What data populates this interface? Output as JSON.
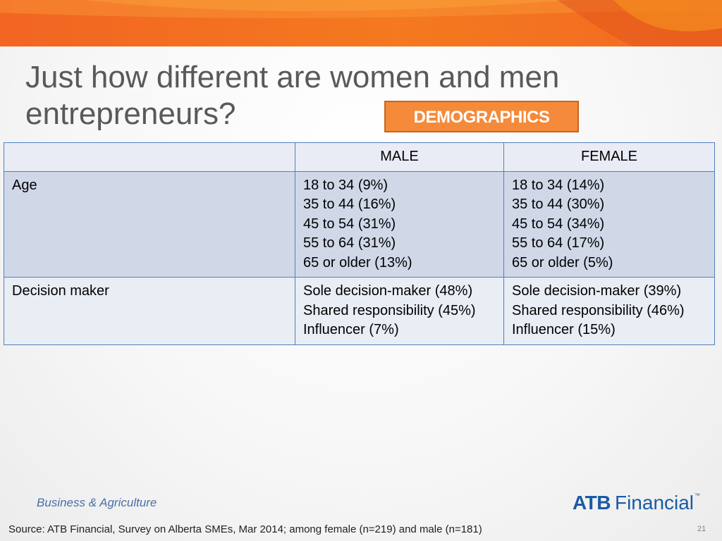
{
  "slide": {
    "title": "Just how different are women and men entrepreneurs?",
    "tag": "DEMOGRAPHICS"
  },
  "table": {
    "headers": [
      "",
      "MALE",
      "FEMALE"
    ],
    "rows": [
      {
        "label": "Age",
        "male": [
          "18 to 34 (9%)",
          "35 to 44 (16%)",
          "45 to 54 (31%)",
          "55 to 64 (31%)",
          "65 or older (13%)"
        ],
        "female": [
          "18 to 34 (14%)",
          "35 to 44 (30%)",
          "45 to 54 (34%)",
          "55 to 64 (17%)",
          "65 or older (5%)"
        ]
      },
      {
        "label": "Decision maker",
        "male": [
          "Sole decision-maker (48%)",
          "Shared responsibility (45%)",
          "Influencer (7%)"
        ],
        "female": [
          "Sole decision-maker (39%)",
          "Shared responsibility (46%)",
          "Influencer (15%)"
        ]
      }
    ]
  },
  "footer": {
    "division": "Business & Agriculture",
    "logo_bold": "ATB",
    "logo_text": "Financial",
    "logo_tm": "™",
    "source": "Source:  ATB Financial, Survey on Alberta SMEs, Mar 2014; among female (n=219) and male (n=181)",
    "page_number": "21"
  },
  "colors": {
    "banner_orange": "#f26722",
    "banner_light": "#f7941d",
    "tag_fill": "#f58a3a",
    "table_border": "#4f81bd",
    "title_text": "#595959",
    "logo_blue": "#1a5aa6"
  }
}
